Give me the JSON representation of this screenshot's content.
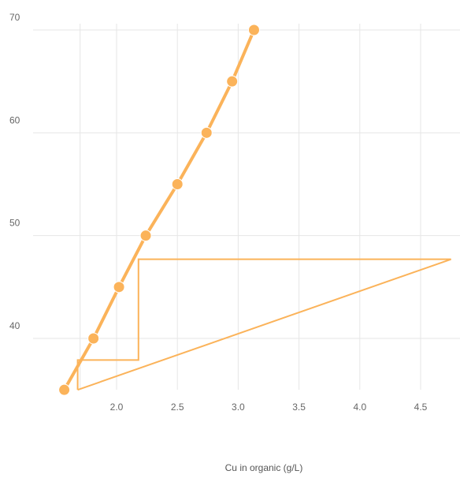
{
  "chart_data": {
    "type": "scatter",
    "xlabel": "Cu in organic (g/L)",
    "ylabel": "",
    "xlim": [
      1.5,
      4.8
    ],
    "ylim": [
      33,
      70
    ],
    "x_ticks": [
      "2.0",
      "2.5",
      "3.0",
      "3.5",
      "4.0",
      "4.5"
    ],
    "y_ticks": [
      "40",
      "50",
      "60",
      "70"
    ],
    "grid": true,
    "color": "#FBB35A",
    "series": [
      {
        "kind": "line-with-markers",
        "x": [
          1.57,
          1.81,
          2.02,
          2.24,
          2.5,
          2.74,
          2.95,
          3.13
        ],
        "y": [
          35,
          40,
          45,
          50,
          55,
          60,
          65,
          70
        ]
      },
      {
        "kind": "line",
        "x": [
          1.68,
          4.75,
          2.18,
          2.18,
          1.68,
          1.68
        ],
        "y": [
          35,
          47.7,
          47.7,
          37.9,
          37.9,
          35
        ]
      }
    ]
  }
}
